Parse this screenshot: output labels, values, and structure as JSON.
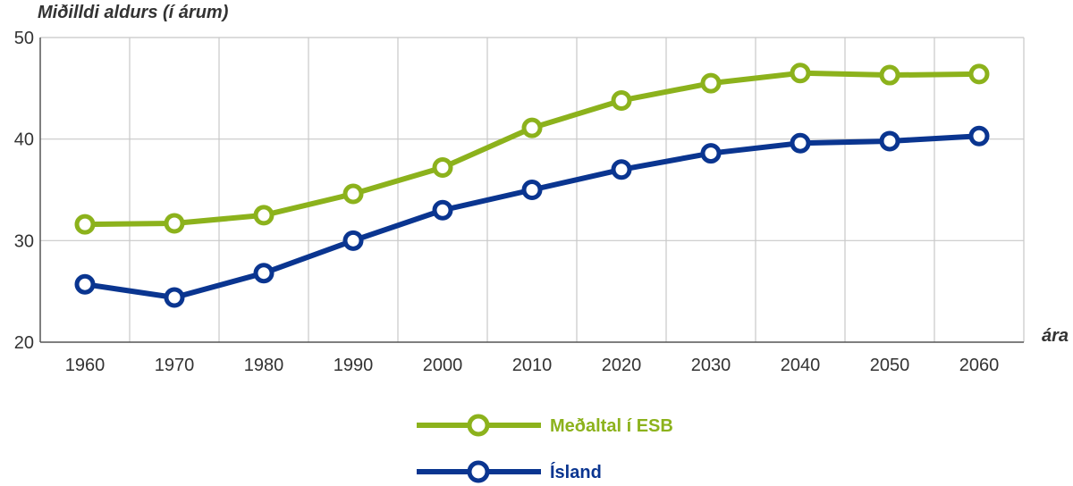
{
  "chart_data": {
    "type": "line",
    "title": "",
    "ylabel": "Miðilldi aldurs (í árum)",
    "xlabel": "ára",
    "x": [
      1960,
      1970,
      1980,
      1990,
      2000,
      2010,
      2020,
      2030,
      2040,
      2050,
      2060
    ],
    "ylim": [
      20,
      50
    ],
    "yticks": [
      20,
      30,
      40,
      50
    ],
    "grid": true,
    "legend_position": "bottom-center",
    "series": [
      {
        "name": "Meðaltal í ESB",
        "color": "#8cb21c",
        "values": [
          31.6,
          31.7,
          32.5,
          34.6,
          37.2,
          41.1,
          43.8,
          45.5,
          46.5,
          46.3,
          46.4
        ]
      },
      {
        "name": "Ísland",
        "color": "#0a3590",
        "values": [
          25.7,
          24.4,
          26.8,
          30.0,
          33.0,
          35.0,
          37.0,
          38.6,
          39.6,
          39.8,
          40.3
        ]
      }
    ]
  }
}
